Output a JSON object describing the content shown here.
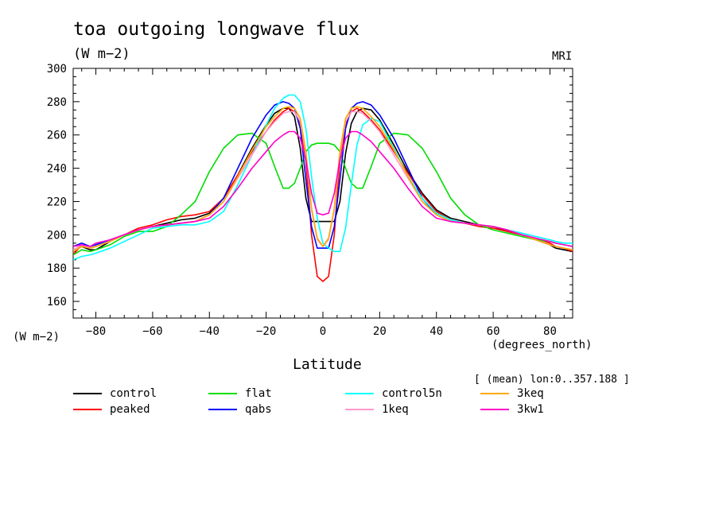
{
  "chart_data": {
    "type": "line",
    "title": "toa outgoing longwave flux",
    "subtitle": "(W m−2)",
    "model_label": "MRI",
    "ylabel": "(W m−2)",
    "xlabel": "Latitude",
    "x_unit": "(degrees_north)",
    "note": "[ (mean) lon:0..357.188 ]",
    "xlim": [
      -88,
      88
    ],
    "ylim": [
      150,
      300
    ],
    "xticks": [
      -80,
      -60,
      -40,
      -20,
      0,
      20,
      40,
      60,
      80
    ],
    "xtick_labels": [
      "−80",
      "−60",
      "−40",
      "−20",
      "0",
      "20",
      "40",
      "60",
      "80"
    ],
    "yticks": [
      160,
      180,
      200,
      220,
      240,
      260,
      280,
      300
    ],
    "ytick_labels": [
      "160",
      "180",
      "200",
      "220",
      "240",
      "260",
      "280",
      "300"
    ],
    "grid": false,
    "legend_position": "bottom",
    "x": [
      -88,
      -85,
      -82,
      -80,
      -75,
      -70,
      -65,
      -60,
      -55,
      -50,
      -45,
      -40,
      -35,
      -30,
      -25,
      -20,
      -17,
      -14,
      -12,
      -10,
      -8,
      -6,
      -4,
      -2,
      0,
      2,
      4,
      6,
      8,
      10,
      12,
      14,
      17,
      20,
      25,
      30,
      35,
      40,
      45,
      50,
      55,
      60,
      65,
      70,
      75,
      80,
      82,
      85,
      88
    ],
    "series": [
      {
        "name": "control",
        "color": "#000000",
        "values": [
          190,
          193,
          191,
          191,
          196,
          200,
          203,
          205,
          207,
          209,
          210,
          213,
          222,
          236,
          252,
          266,
          273,
          276,
          276,
          271,
          252,
          222,
          208,
          208,
          208,
          208,
          208,
          220,
          249,
          267,
          274,
          276,
          275,
          269,
          254,
          238,
          225,
          215,
          210,
          208,
          206,
          205,
          202,
          200,
          197,
          194,
          192,
          191,
          190
        ]
      },
      {
        "name": "peaked",
        "color": "#ff0000",
        "values": [
          188,
          194,
          192,
          193,
          196,
          200,
          204,
          206,
          209,
          211,
          212,
          214,
          222,
          236,
          250,
          262,
          269,
          274,
          276,
          274,
          267,
          244,
          200,
          175,
          172,
          175,
          200,
          244,
          267,
          274,
          276,
          274,
          269,
          263,
          250,
          237,
          224,
          214,
          209,
          207,
          205,
          204,
          202,
          200,
          198,
          195,
          193,
          192,
          190
        ]
      },
      {
        "name": "flat",
        "color": "#00dd00",
        "values": [
          188,
          191,
          190,
          191,
          194,
          199,
          202,
          202,
          205,
          212,
          220,
          238,
          252,
          260,
          261,
          255,
          241,
          228,
          228,
          231,
          240,
          250,
          254,
          255,
          255,
          255,
          254,
          250,
          240,
          231,
          228,
          228,
          241,
          255,
          261,
          260,
          252,
          238,
          222,
          212,
          206,
          203,
          201,
          199,
          197,
          196,
          195,
          194,
          193
        ]
      },
      {
        "name": "qabs",
        "color": "#0000ff",
        "values": [
          193,
          195,
          193,
          194,
          197,
          200,
          203,
          205,
          206,
          207,
          208,
          212,
          222,
          240,
          258,
          272,
          278,
          280,
          279,
          276,
          264,
          233,
          205,
          192,
          192,
          192,
          205,
          233,
          264,
          276,
          279,
          280,
          278,
          272,
          258,
          240,
          222,
          212,
          208,
          207,
          206,
          205,
          203,
          200,
          197,
          194,
          193,
          192,
          191
        ]
      },
      {
        "name": "control5n",
        "color": "#00ffff",
        "values": [
          185,
          187,
          188,
          189,
          192,
          196,
          200,
          204,
          205,
          206,
          206,
          208,
          214,
          230,
          248,
          266,
          276,
          282,
          284,
          284,
          280,
          264,
          235,
          210,
          195,
          192,
          190,
          190,
          204,
          230,
          254,
          266,
          270,
          268,
          252,
          235,
          222,
          213,
          209,
          207,
          206,
          205,
          203,
          201,
          199,
          197,
          196,
          195,
          195
        ]
      },
      {
        "name": "1keq",
        "color": "#ff99cc",
        "values": [
          191,
          194,
          192,
          193,
          196,
          200,
          203,
          205,
          206,
          207,
          208,
          212,
          220,
          234,
          248,
          262,
          268,
          273,
          274,
          274,
          268,
          248,
          215,
          197,
          193,
          197,
          215,
          248,
          268,
          274,
          274,
          273,
          268,
          262,
          248,
          234,
          220,
          212,
          208,
          207,
          206,
          205,
          203,
          200,
          197,
          194,
          193,
          192,
          191
        ]
      },
      {
        "name": "3keq",
        "color": "#ffaa00",
        "values": [
          190,
          193,
          192,
          193,
          196,
          200,
          203,
          205,
          206,
          207,
          208,
          212,
          220,
          235,
          251,
          265,
          271,
          276,
          277,
          276,
          270,
          250,
          216,
          198,
          193,
          198,
          216,
          250,
          270,
          276,
          277,
          276,
          271,
          265,
          251,
          235,
          220,
          212,
          208,
          207,
          206,
          205,
          203,
          200,
          197,
          194,
          193,
          192,
          191
        ]
      },
      {
        "name": "3kw1",
        "color": "#ff00cc",
        "values": [
          193,
          194,
          193,
          195,
          197,
          200,
          203,
          205,
          206,
          207,
          208,
          210,
          217,
          228,
          240,
          250,
          256,
          260,
          262,
          262,
          258,
          245,
          225,
          213,
          212,
          213,
          225,
          245,
          258,
          262,
          262,
          260,
          256,
          250,
          240,
          228,
          217,
          210,
          208,
          207,
          206,
          205,
          203,
          200,
          198,
          196,
          195,
          194,
          193
        ]
      }
    ]
  },
  "legend_layout": [
    [
      "control",
      "flat",
      "control5n",
      "3keq"
    ],
    [
      "peaked",
      "qabs",
      "1keq",
      "3kw1"
    ]
  ]
}
